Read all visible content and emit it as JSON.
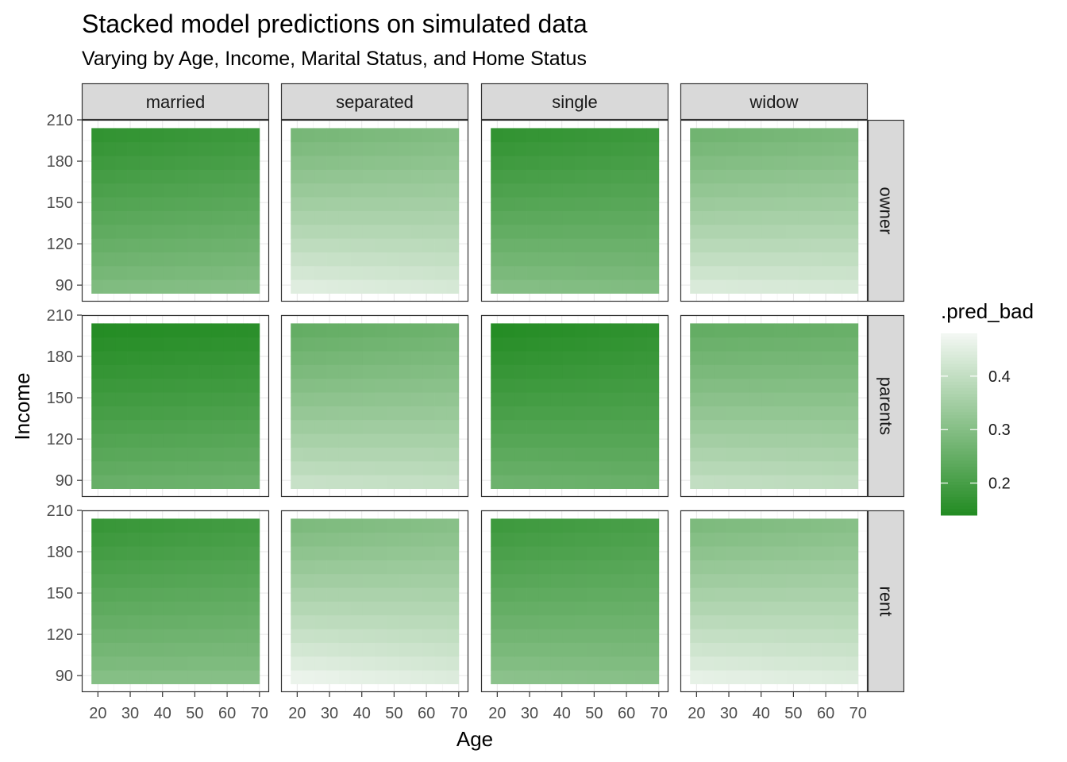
{
  "chart_data": {
    "type": "heatmap",
    "title": "Stacked model predictions on simulated data",
    "subtitle": "Varying by Age, Income, Marital Status, and Home Status",
    "xlabel": "Age",
    "ylabel": "Income",
    "legend_title": ".pred_bad",
    "legend_position": "right",
    "grid": true,
    "facet_cols": [
      "married",
      "separated",
      "single",
      "widow"
    ],
    "facet_rows": [
      "owner",
      "parents",
      "rent"
    ],
    "x": {
      "range": [
        18,
        70
      ],
      "lim": [
        15,
        73
      ],
      "ticks": [
        20,
        30,
        40,
        50,
        60,
        70
      ],
      "tick_labels": [
        "20",
        "30",
        "40",
        "50",
        "60",
        "70"
      ]
    },
    "y": {
      "range": [
        84,
        204
      ],
      "lim": [
        78,
        210
      ],
      "ticks": [
        90,
        120,
        150,
        180,
        210
      ],
      "tick_labels": [
        "90",
        "120",
        "150",
        "180",
        "210"
      ]
    },
    "grid_steps": {
      "age": 14,
      "income": 12
    },
    "color_scale": {
      "low": "#228B22",
      "high": "#F4F8F4",
      "range": [
        0.14,
        0.48
      ],
      "breaks": [
        0.2,
        0.3,
        0.4
      ],
      "break_labels": [
        "0.2",
        "0.3",
        "0.4"
      ]
    },
    "panels": [
      {
        "home": "owner",
        "marital": "married",
        "pred_low_income_young": 0.3,
        "pred_low_income_old": 0.31,
        "pred_high_income_young": 0.16,
        "pred_high_income_old": 0.18
      },
      {
        "home": "owner",
        "marital": "separated",
        "pred_low_income_young": 0.46,
        "pred_low_income_old": 0.44,
        "pred_high_income_young": 0.27,
        "pred_high_income_old": 0.29
      },
      {
        "home": "owner",
        "marital": "single",
        "pred_low_income_young": 0.31,
        "pred_low_income_old": 0.3,
        "pred_high_income_young": 0.16,
        "pred_high_income_old": 0.18
      },
      {
        "home": "owner",
        "marital": "widow",
        "pred_low_income_young": 0.45,
        "pred_low_income_old": 0.44,
        "pred_high_income_young": 0.26,
        "pred_high_income_old": 0.28
      },
      {
        "home": "parents",
        "marital": "married",
        "pred_low_income_young": 0.26,
        "pred_low_income_old": 0.27,
        "pred_high_income_young": 0.14,
        "pred_high_income_old": 0.15
      },
      {
        "home": "parents",
        "marital": "separated",
        "pred_low_income_young": 0.42,
        "pred_low_income_old": 0.41,
        "pred_high_income_young": 0.24,
        "pred_high_income_old": 0.26
      },
      {
        "home": "parents",
        "marital": "single",
        "pred_low_income_young": 0.27,
        "pred_low_income_old": 0.26,
        "pred_high_income_young": 0.14,
        "pred_high_income_old": 0.16
      },
      {
        "home": "parents",
        "marital": "widow",
        "pred_low_income_young": 0.41,
        "pred_low_income_old": 0.4,
        "pred_high_income_young": 0.24,
        "pred_high_income_old": 0.25
      },
      {
        "home": "rent",
        "marital": "married",
        "pred_low_income_young": 0.31,
        "pred_low_income_old": 0.31,
        "pred_high_income_young": 0.17,
        "pred_high_income_old": 0.19
      },
      {
        "home": "rent",
        "marital": "separated",
        "pred_low_income_young": 0.48,
        "pred_low_income_old": 0.45,
        "pred_high_income_young": 0.28,
        "pred_high_income_old": 0.3
      },
      {
        "home": "rent",
        "marital": "single",
        "pred_low_income_young": 0.32,
        "pred_low_income_old": 0.31,
        "pred_high_income_young": 0.18,
        "pred_high_income_old": 0.2
      },
      {
        "home": "rent",
        "marital": "widow",
        "pred_low_income_young": 0.47,
        "pred_low_income_old": 0.45,
        "pred_high_income_young": 0.28,
        "pred_high_income_old": 0.3
      }
    ]
  }
}
